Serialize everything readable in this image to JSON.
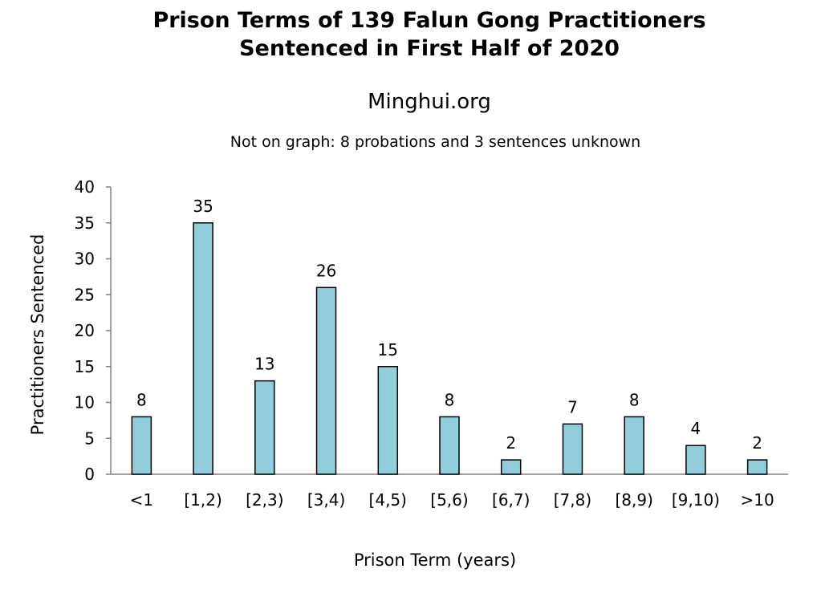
{
  "chart_data": {
    "type": "bar",
    "title_line1": "Prison Terms of 139 Falun Gong Practitioners",
    "title_line2": "Sentenced in First Half of 2020",
    "source": "Minghui.org",
    "note": "Not on graph: 8 probations and 3 sentences unknown",
    "xlabel": "Prison Term (years)",
    "ylabel": "Practitioners Sentenced",
    "ylim": [
      0,
      40
    ],
    "yticks": [
      0,
      5,
      10,
      15,
      20,
      25,
      30,
      35,
      40
    ],
    "categories": [
      "<1",
      "[1,2)",
      "[2,3)",
      "[3,4)",
      "[4,5)",
      "[5,6)",
      "[6,7)",
      "[7,8)",
      "[8,9)",
      "[9,10)",
      ">10"
    ],
    "values": [
      8,
      35,
      13,
      26,
      15,
      8,
      2,
      7,
      8,
      4,
      2
    ],
    "data_labels": true,
    "grid": false,
    "legend": "none",
    "bar_color": "#92cddc",
    "bar_edge_color": "#000000"
  }
}
